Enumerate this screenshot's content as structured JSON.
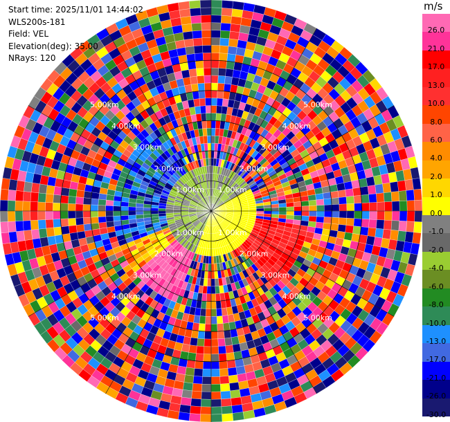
{
  "header": {
    "start_time": "Start time: 2025/11/01 14:44:02",
    "instrument": "WLS200s-181",
    "field": "Field: VEL",
    "elevation": "Elevation(deg): 35.00",
    "nrays": "NRays: 120"
  },
  "chart_data": {
    "type": "heatmap",
    "projection": "polar (PPI)",
    "field": "VEL",
    "elevation_deg": 35.0,
    "n_rays": 120,
    "max_range_km": 7.0,
    "grid": true,
    "range_ring_labels": [
      {
        "range_km": 1,
        "label": "1.00km"
      },
      {
        "range_km": 2,
        "label": "2.00km"
      },
      {
        "range_km": 3,
        "label": "3.00km"
      },
      {
        "range_km": 4,
        "label": "4.00km"
      },
      {
        "range_km": 5,
        "label": "5.00km"
      }
    ],
    "colorbar": {
      "unit": "m/s",
      "placement": "right",
      "ticks": [
        "26.0",
        "21.0",
        "17.0",
        "13.0",
        "10.0",
        "8.0",
        "6.0",
        "4.0",
        "2.0",
        "1.0",
        "0.0",
        "-1.0",
        "-2.0",
        "-4.0",
        "-6.0",
        "-8.0",
        "-10.0",
        "-13.0",
        "-17.0",
        "-21.0",
        "-26.0",
        "-30.0"
      ],
      "colors": [
        "#ff69b4",
        "#ff3399",
        "#ff0000",
        "#ff2020",
        "#ff3030",
        "#ff4500",
        "#ff6347",
        "#ff8c00",
        "#ffa500",
        "#ffd700",
        "#ffff00",
        "#808080",
        "#696969",
        "#9acd32",
        "#6b8e23",
        "#228b22",
        "#2e8b57",
        "#1e90ff",
        "#4169e1",
        "#0000ff",
        "#00008b",
        "#191970"
      ]
    }
  }
}
